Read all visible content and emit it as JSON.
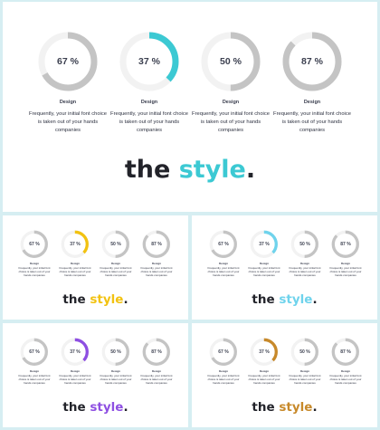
{
  "colors": {
    "track": "#f2f2f2",
    "gray": "#c4c4c4",
    "text": "#3b3f4f",
    "dark": "#22232a"
  },
  "slides": [
    {
      "accent": "#3cc9d3",
      "cards": [
        {
          "percent": "67 %",
          "value": 67,
          "highlight": false,
          "label": "Design",
          "desc": "Frequently, your initial font choice is taken out of your hands companies"
        },
        {
          "percent": "37 %",
          "value": 37,
          "highlight": true,
          "label": "Design",
          "desc": "Frequently, your initial font choice is taken out of your hands companies"
        },
        {
          "percent": "50 %",
          "value": 50,
          "highlight": false,
          "label": "Design",
          "desc": "Frequently, your initial font choice is taken out of your hands companies"
        },
        {
          "percent": "87 %",
          "value": 87,
          "highlight": false,
          "label": "Design",
          "desc": "Frequently, your initial font choice is taken out of your hands companies"
        }
      ],
      "tagline": {
        "word1": "the",
        "word2": "style",
        "dot": "."
      }
    },
    {
      "accent": "#f2c211",
      "cards": [
        {
          "percent": "67 %",
          "value": 67,
          "highlight": false,
          "label": "Design",
          "desc": "Frequently, your initial font choice is taken out of your hands companies"
        },
        {
          "percent": "37 %",
          "value": 37,
          "highlight": true,
          "label": "Design",
          "desc": "Frequently, your initial font choice is taken out of your hands companies"
        },
        {
          "percent": "50 %",
          "value": 50,
          "highlight": false,
          "label": "Design",
          "desc": "Frequently, your initial font choice is taken out of your hands companies"
        },
        {
          "percent": "87 %",
          "value": 87,
          "highlight": false,
          "label": "Design",
          "desc": "Frequently, your initial font choice is taken out of your hands companies"
        }
      ],
      "tagline": {
        "word1": "the",
        "word2": "style",
        "dot": "."
      }
    },
    {
      "accent": "#6fd3ec",
      "cards": [
        {
          "percent": "67 %",
          "value": 67,
          "highlight": false,
          "label": "Design",
          "desc": "Frequently, your initial font choice is taken out of your hands companies"
        },
        {
          "percent": "37 %",
          "value": 37,
          "highlight": true,
          "label": "Design",
          "desc": "Frequently, your initial font choice is taken out of your hands companies"
        },
        {
          "percent": "50 %",
          "value": 50,
          "highlight": false,
          "label": "Design",
          "desc": "Frequently, your initial font choice is taken out of your hands companies"
        },
        {
          "percent": "87 %",
          "value": 87,
          "highlight": false,
          "label": "Design",
          "desc": "Frequently, your initial font choice is taken out of your hands companies"
        }
      ],
      "tagline": {
        "word1": "the",
        "word2": "style",
        "dot": "."
      }
    },
    {
      "accent": "#8e4fe2",
      "cards": [
        {
          "percent": "67 %",
          "value": 67,
          "highlight": false,
          "label": "Design",
          "desc": "Frequently, your initial font choice is taken out of your hands companies"
        },
        {
          "percent": "37 %",
          "value": 37,
          "highlight": true,
          "label": "Design",
          "desc": "Frequently, your initial font choice is taken out of your hands companies"
        },
        {
          "percent": "50 %",
          "value": 50,
          "highlight": false,
          "label": "Design",
          "desc": "Frequently, your initial font choice is taken out of your hands companies"
        },
        {
          "percent": "87 %",
          "value": 87,
          "highlight": false,
          "label": "Design",
          "desc": "Frequently, your initial font choice is taken out of your hands companies"
        }
      ],
      "tagline": {
        "word1": "the",
        "word2": "style",
        "dot": "."
      }
    },
    {
      "accent": "#c7892a",
      "cards": [
        {
          "percent": "67 %",
          "value": 67,
          "highlight": false,
          "label": "Design",
          "desc": "Frequently, your initial font choice is taken out of your hands companies"
        },
        {
          "percent": "37 %",
          "value": 37,
          "highlight": true,
          "label": "Design",
          "desc": "Frequently, your initial font choice is taken out of your hands companies"
        },
        {
          "percent": "50 %",
          "value": 50,
          "highlight": false,
          "label": "Design",
          "desc": "Frequently, your initial font choice is taken out of your hands companies"
        },
        {
          "percent": "87 %",
          "value": 87,
          "highlight": false,
          "label": "Design",
          "desc": "Frequently, your initial font choice is taken out of your hands companies"
        }
      ],
      "tagline": {
        "word1": "the",
        "word2": "style",
        "dot": "."
      }
    }
  ]
}
